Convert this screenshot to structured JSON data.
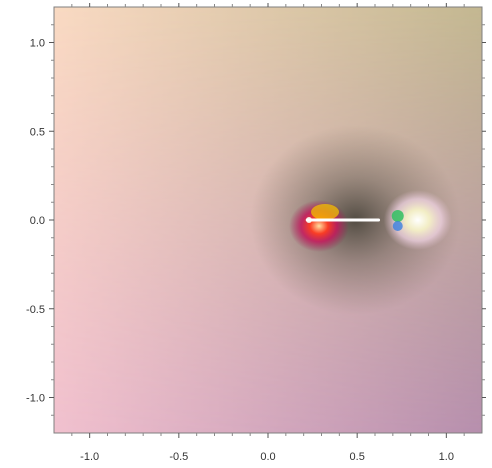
{
  "chart_data": {
    "type": "heatmap",
    "title": "",
    "xlabel": "",
    "ylabel": "",
    "xlim": [
      -1.2,
      1.2
    ],
    "ylim": [
      -1.2,
      1.2
    ],
    "x_ticks": [
      "-1.0",
      "-0.5",
      "0.0",
      "0.5",
      "1.0"
    ],
    "x_tick_values": [
      -1.0,
      -0.5,
      0.0,
      0.5,
      1.0
    ],
    "y_ticks": [
      "1.0",
      "0.5",
      "0.0",
      "-0.5",
      "-1.0"
    ],
    "y_tick_values": [
      1.0,
      0.5,
      0.0,
      -0.5,
      -1.0
    ],
    "grid": false,
    "legend": "none",
    "features": {
      "branch_cut": {
        "x_start": 0.22,
        "x_end": 0.62,
        "y": 0.0,
        "color": "#ffffff"
      },
      "singularity_left": {
        "x": 0.23,
        "y": 0.0
      },
      "singularity_right": {
        "x": 0.75,
        "y": 0.0
      }
    },
    "colors": {
      "upper_left": "#f9d9c0",
      "upper_right": "#c3b890",
      "lower_left": "#f0bfcf",
      "lower_right": "#b98fb0",
      "dark_region": "#4f4a3c",
      "frame": "#7f7f7f"
    }
  }
}
